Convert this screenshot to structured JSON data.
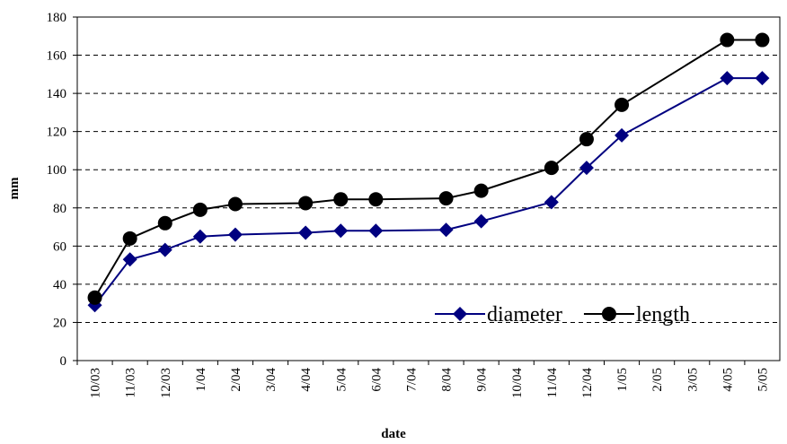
{
  "chart_data": {
    "type": "line",
    "x_label": "date",
    "y_label": "mm",
    "categories": [
      "10/03",
      "11/03",
      "12/03",
      "1/04",
      "2/04",
      "3/04",
      "4/04",
      "5/04",
      "6/04",
      "7/04",
      "8/04",
      "9/04",
      "10/04",
      "11/04",
      "12/04",
      "1/05",
      "2/05",
      "3/05",
      "4/05",
      "5/05"
    ],
    "x": [
      "10/03",
      "11/03",
      "12/03",
      "1/04",
      "2/04",
      "4/04",
      "5/04",
      "6/04",
      "8/04",
      "9/04",
      "11/04",
      "12/04",
      "1/05",
      "4/05",
      "5/05"
    ],
    "series": [
      {
        "name": "diameter",
        "color": "#000080",
        "marker": "diamond",
        "values": [
          29,
          53,
          58,
          65,
          66,
          67,
          68,
          68,
          68.5,
          73,
          83,
          101,
          118,
          148,
          148
        ]
      },
      {
        "name": "length",
        "color": "#000000",
        "marker": "circle",
        "values": [
          33,
          64,
          72,
          79,
          82,
          82.5,
          84.5,
          84.5,
          85,
          89,
          101,
          116,
          134,
          168,
          168
        ]
      }
    ],
    "ylim": [
      0,
      180
    ],
    "yticks": [
      0,
      20,
      40,
      60,
      80,
      100,
      120,
      140,
      160,
      180
    ],
    "grid": true,
    "legend": "lower right"
  }
}
